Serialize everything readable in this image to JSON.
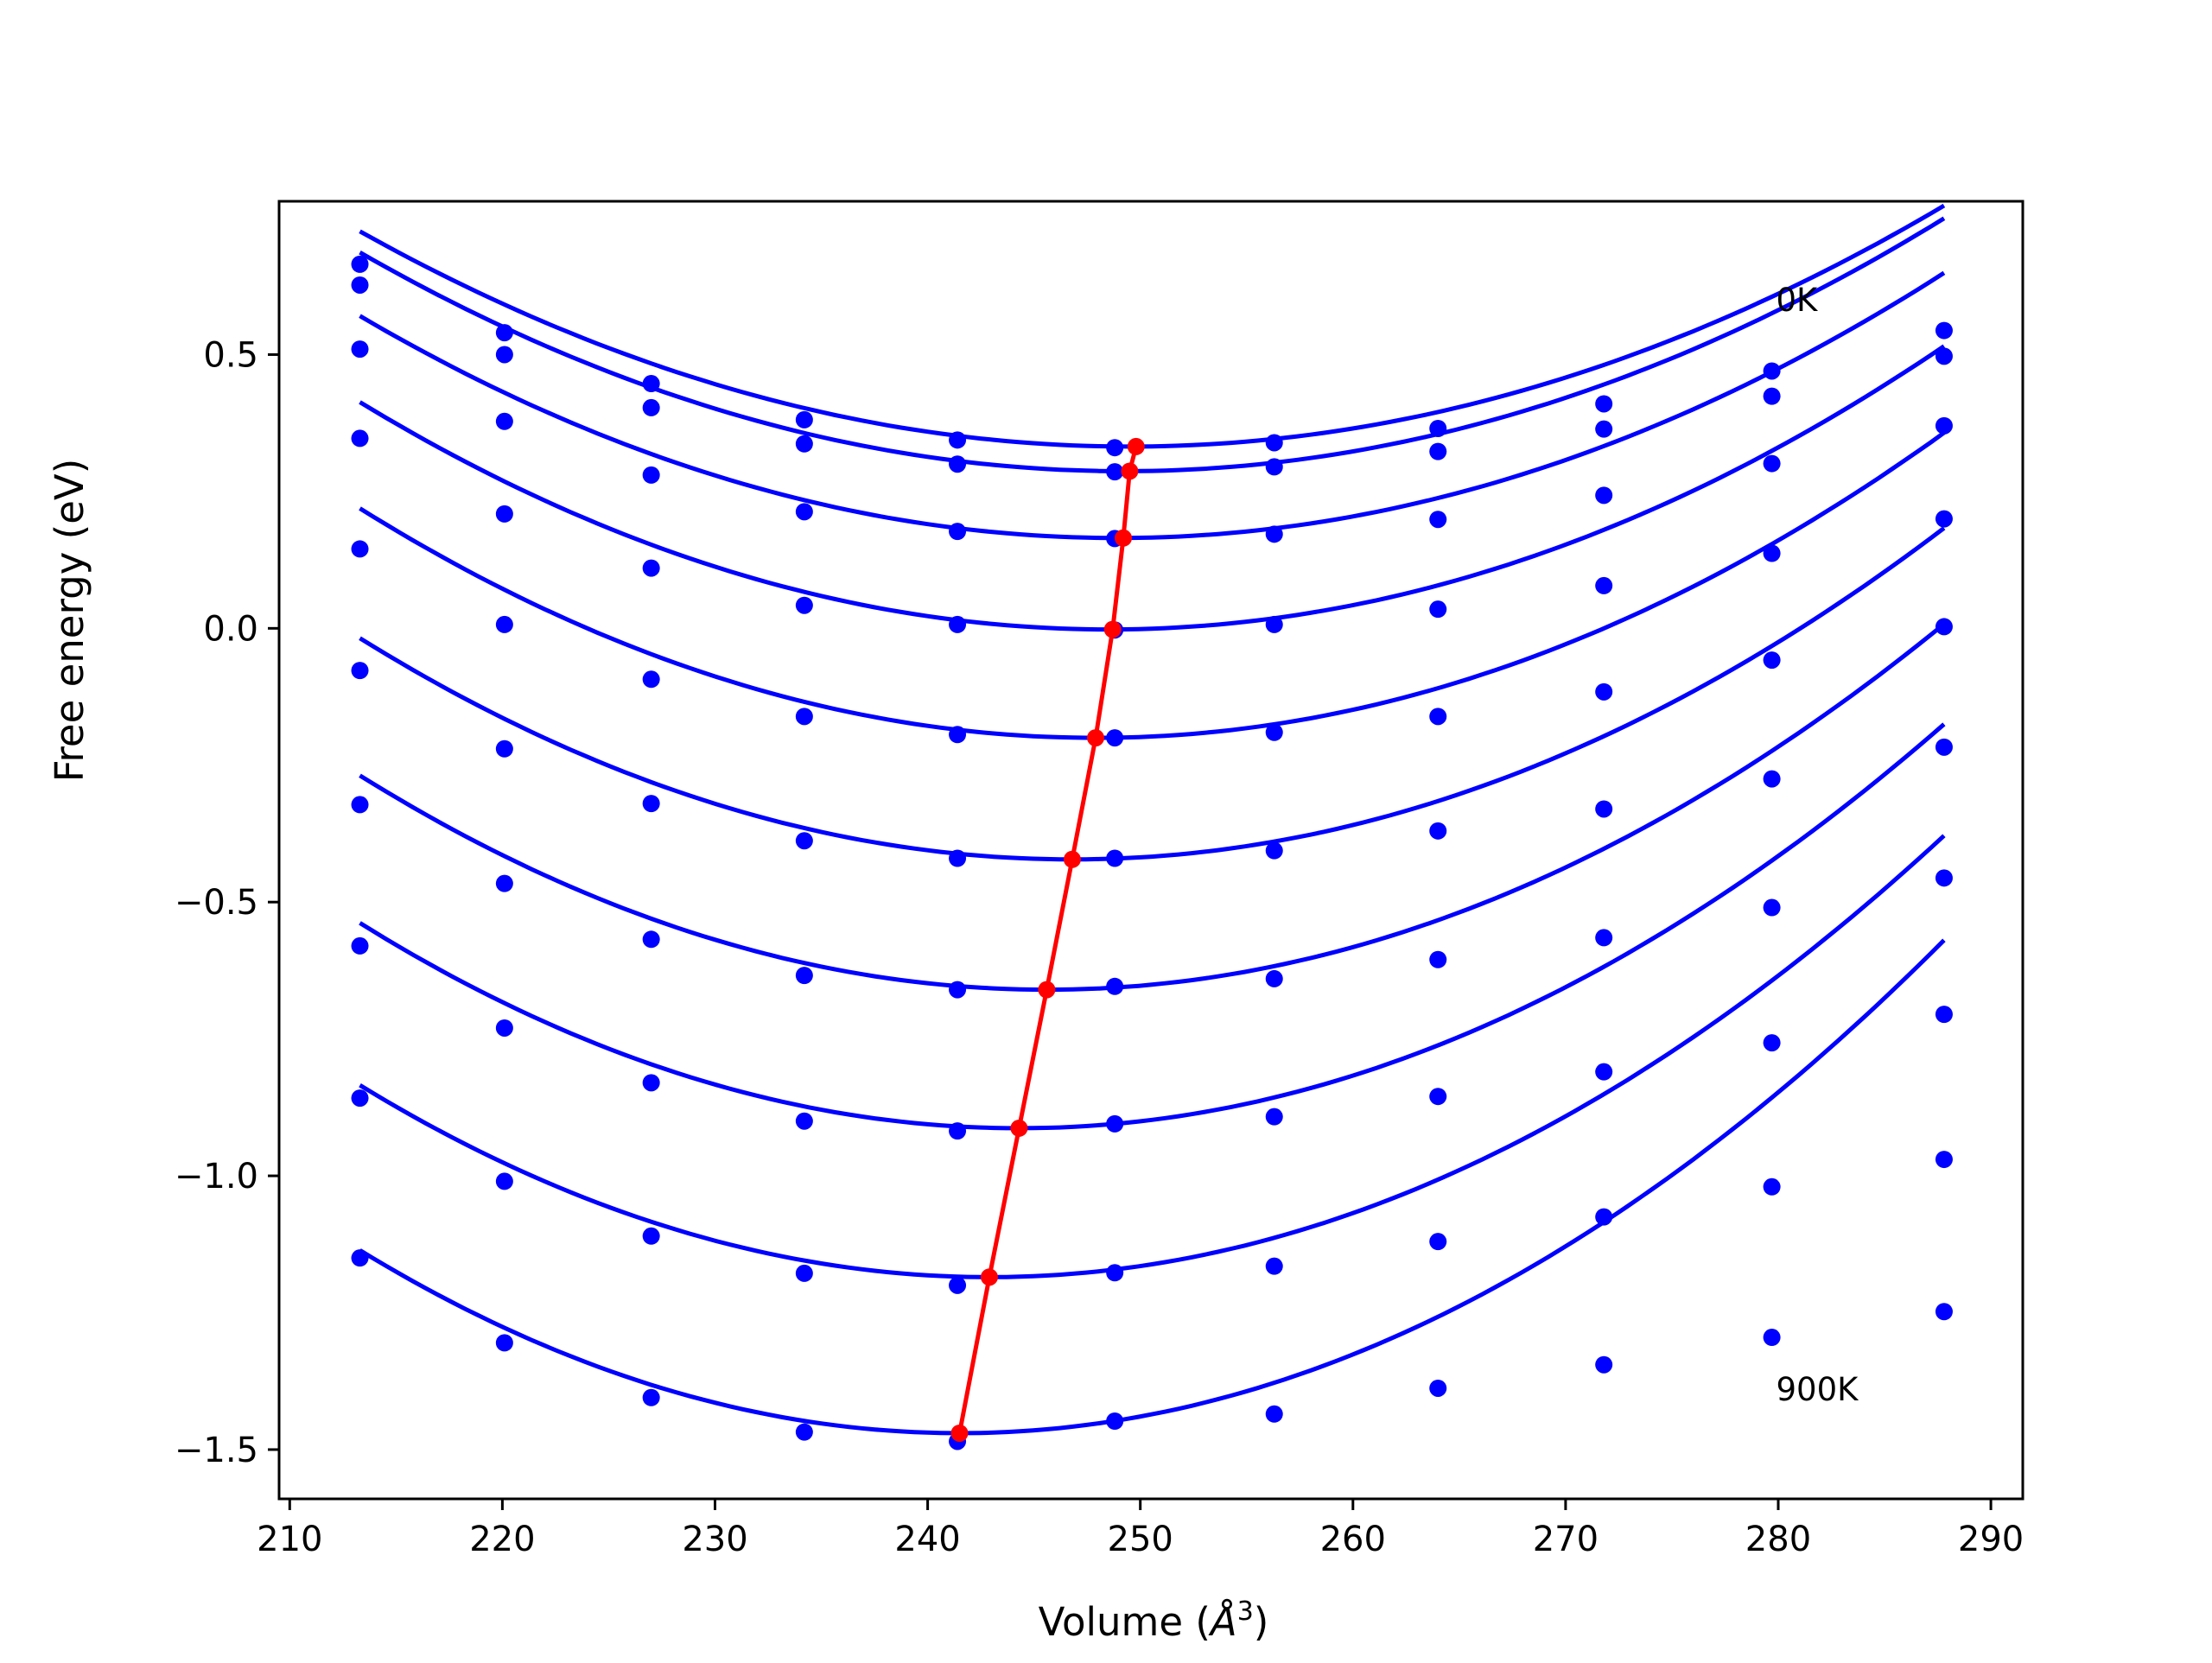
{
  "chart_data": {
    "type": "line",
    "xlabel_text": "Volume (",
    "xlabel_unit": "Å",
    "xlabel_sup": "3",
    "xlabel_close": ")",
    "ylabel": "Free energy (eV)",
    "xlim": [
      209.5,
      291.5
    ],
    "ylim": [
      -1.59,
      0.78
    ],
    "xticks": [
      210,
      220,
      230,
      240,
      250,
      260,
      270,
      280,
      290
    ],
    "yticks": [
      -1.5,
      -1.0,
      -0.5,
      0.0,
      0.5
    ],
    "ytick_labels": [
      "−1.5",
      "−1.0",
      "−0.5",
      "0.0",
      "0.5"
    ],
    "grid": false,
    "annotations": [
      {
        "text": "0K",
        "x": 279.9,
        "y": 0.6
      },
      {
        "text": "900K",
        "x": 279.9,
        "y": -1.39
      }
    ],
    "colors": {
      "curves": "#0000ff",
      "minimum_line": "#ff0000"
    },
    "volumes": [
      213.3,
      220.1,
      227.0,
      234.2,
      241.4,
      248.8,
      256.3,
      264.0,
      271.8,
      279.7,
      287.8
    ],
    "series": [
      {
        "points_y": [
          0.665,
          0.54,
          0.447,
          0.381,
          0.344,
          0.33,
          0.339,
          0.365,
          0.41,
          0.47,
          0.544
        ],
        "fit": [
          0.0003,
          249.5,
          0.332
        ]
      },
      {
        "points_y": [
          0.627,
          0.5,
          0.403,
          0.337,
          0.3,
          0.286,
          0.295,
          0.323,
          0.364,
          0.424,
          0.497
        ],
        "fit": [
          0.00031,
          249.2,
          0.287
        ]
      },
      {
        "points_y": [
          0.51,
          0.378,
          0.28,
          0.213,
          0.177,
          0.164,
          0.172,
          0.199,
          0.243,
          0.301,
          0.37
        ],
        "fit": [
          0.00032,
          248.9,
          0.165
        ]
      },
      {
        "points_y": [
          0.347,
          0.209,
          0.11,
          0.042,
          0.007,
          -0.003,
          0.007,
          0.035,
          0.078,
          0.137,
          0.2
        ],
        "fit": [
          0.000335,
          248.5,
          -0.002
        ]
      },
      {
        "points_y": [
          0.145,
          0.007,
          -0.093,
          -0.161,
          -0.194,
          -0.2,
          -0.19,
          -0.161,
          -0.116,
          -0.058,
          0.003
        ],
        "fit": [
          0.00035,
          247.9,
          -0.2
        ]
      },
      {
        "points_y": [
          -0.077,
          -0.22,
          -0.32,
          -0.388,
          -0.42,
          -0.42,
          -0.406,
          -0.37,
          -0.33,
          -0.275,
          -0.217
        ],
        "fit": [
          0.00036,
          246.8,
          -0.422
        ]
      },
      {
        "points_y": [
          -0.322,
          -0.466,
          -0.568,
          -0.634,
          -0.66,
          -0.654,
          -0.64,
          -0.605,
          -0.565,
          -0.51,
          -0.456
        ],
        "fit": [
          0.000375,
          245.6,
          -0.66
        ]
      },
      {
        "points_y": [
          -0.58,
          -0.73,
          -0.83,
          -0.9,
          -0.918,
          -0.905,
          -0.892,
          -0.855,
          -0.81,
          -0.757,
          -0.705
        ],
        "fit": [
          0.00039,
          244.3,
          -0.913
        ]
      },
      {
        "points_y": [
          -0.858,
          -1.01,
          -1.11,
          -1.178,
          -1.2,
          -1.177,
          -1.165,
          -1.12,
          -1.075,
          -1.02,
          -0.97
        ],
        "fit": [
          0.0004,
          242.9,
          -1.185
        ]
      },
      {
        "points_y": [
          -1.15,
          -1.305,
          -1.405,
          -1.468,
          -1.485,
          -1.448,
          -1.435,
          -1.388,
          -1.345,
          -1.295,
          -1.248
        ],
        "fit": [
          0.00042,
          241.5,
          -1.47
        ]
      }
    ],
    "minimum_line": {
      "x": [
        249.8,
        249.5,
        249.2,
        248.7,
        247.9,
        246.8,
        245.6,
        244.3,
        242.9,
        241.5
      ],
      "y": [
        0.332,
        0.287,
        0.165,
        -0.002,
        -0.2,
        -0.422,
        -0.66,
        -0.913,
        -1.185,
        -1.47
      ]
    }
  }
}
